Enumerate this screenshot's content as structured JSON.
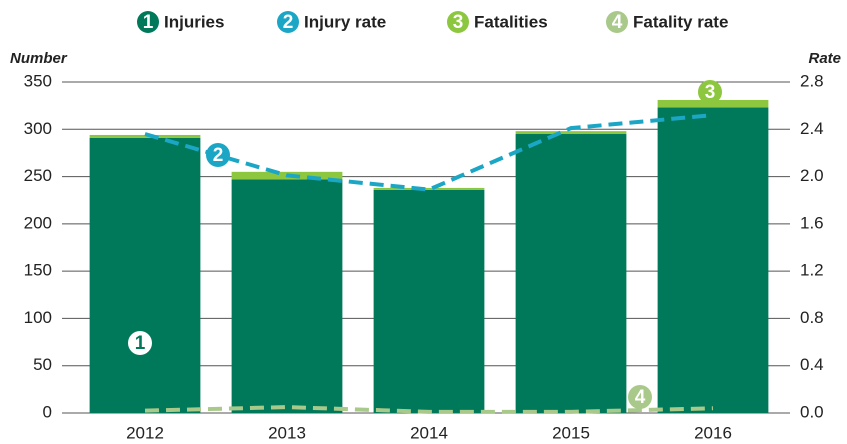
{
  "chart_data": {
    "type": "bar",
    "categories": [
      "2012",
      "2013",
      "2014",
      "2015",
      "2016"
    ],
    "series": [
      {
        "name": "Injuries",
        "color": "#00785a",
        "values": [
          291,
          247,
          236,
          295,
          323
        ]
      },
      {
        "name": "Injury rate",
        "color": "#1ba6c6",
        "axis": "y2",
        "values": [
          2.36,
          2.01,
          1.89,
          2.41,
          2.52
        ]
      },
      {
        "name": "Fatalities",
        "color": "#8dc63f",
        "values": [
          3,
          8,
          2,
          3,
          8
        ]
      },
      {
        "name": "Fatality rate",
        "color": "#a8c98a",
        "axis": "y2",
        "values": [
          0.02,
          0.05,
          0.01,
          0.01,
          0.04
        ]
      }
    ],
    "annotations": [
      "1",
      "2",
      "3",
      "4"
    ],
    "ylabel": "Number",
    "y2label": "Rate",
    "ylim": [
      0,
      350
    ],
    "yticks": [
      0,
      50,
      100,
      150,
      200,
      250,
      300,
      350
    ],
    "y2lim": [
      0,
      2.8
    ],
    "y2ticks": [
      {
        "value": 0,
        "label": "0.0"
      },
      0.4,
      0.8,
      1.2,
      1.6,
      {
        "value": 2,
        "label": "2.0"
      },
      2.4,
      2.8
    ],
    "grid": true
  }
}
